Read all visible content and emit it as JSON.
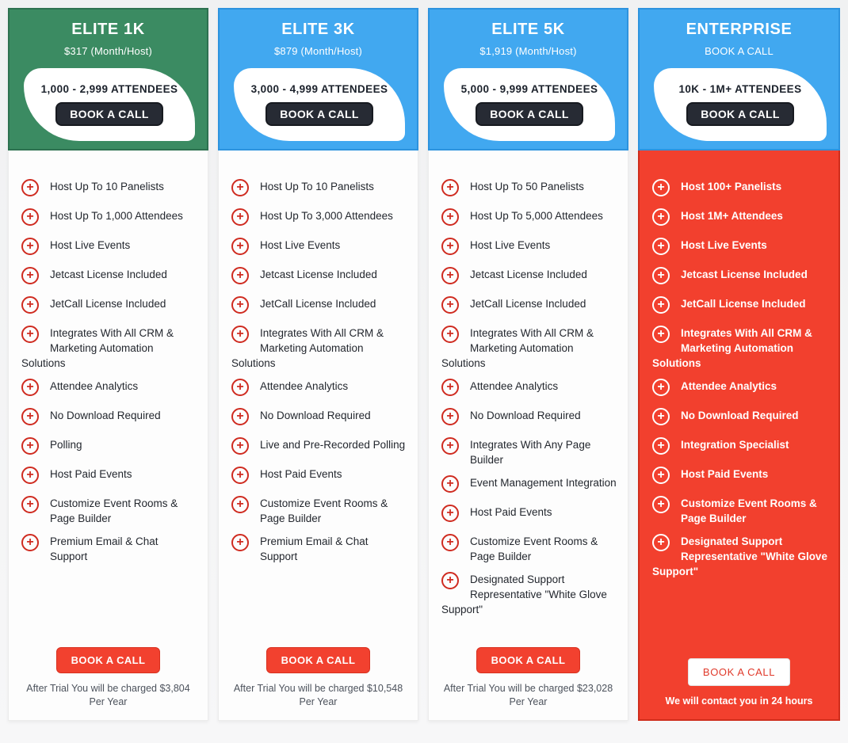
{
  "colors": {
    "green_header": "#3b8b62",
    "blue_header": "#41a8f0",
    "enterprise_red": "#f2402e",
    "icon_red": "#cf2b20",
    "dark_button": "#272b34",
    "red_button": "#f2412f"
  },
  "icons": {
    "plus": "+"
  },
  "plans": [
    {
      "title": "ELITE 1K",
      "subtitle": "$317 (Month/Host)",
      "attendees": "1,000 - 2,999 ATTENDEES",
      "header_cta": "BOOK A CALL",
      "features": [
        "Host Up To 10 Panelists",
        "Host Up To 1,000 Attendees",
        "Host Live Events",
        "Jetcast License Included",
        "JetCall License Included",
        "Integrates With All CRM & Marketing Automation Solutions",
        "Attendee Analytics",
        "No Download Required",
        "Polling",
        "Host Paid Events",
        "Customize Event Rooms & Page Builder",
        "Premium Email & Chat Support"
      ],
      "footer_cta": "BOOK A CALL",
      "footer_note": "After Trial You will be charged $3,804 Per Year"
    },
    {
      "title": "ELITE 3K",
      "subtitle": "$879 (Month/Host)",
      "attendees": "3,000 - 4,999 ATTENDEES",
      "header_cta": "BOOK A CALL",
      "features": [
        "Host Up To 10 Panelists",
        "Host Up To 3,000 Attendees",
        "Host Live Events",
        "Jetcast License Included",
        "JetCall License Included",
        "Integrates With All CRM & Marketing Automation Solutions",
        "Attendee Analytics",
        "No Download Required",
        "Live and Pre-Recorded Polling",
        "Host Paid Events",
        "Customize Event Rooms & Page Builder",
        "Premium Email & Chat Support"
      ],
      "footer_cta": "BOOK A CALL",
      "footer_note": "After Trial You will be charged $10,548 Per Year"
    },
    {
      "title": "ELITE 5K",
      "subtitle": "$1,919 (Month/Host)",
      "attendees": "5,000 - 9,999 ATTENDEES",
      "header_cta": "BOOK A CALL",
      "features": [
        "Host Up To 50 Panelists",
        "Host Up To 5,000 Attendees",
        "Host Live Events",
        "Jetcast License Included",
        "JetCall License Included",
        "Integrates With All CRM & Marketing Automation Solutions",
        "Attendee Analytics",
        "No Download Required",
        "Integrates With Any Page Builder",
        "Event Management Integration",
        "Host Paid Events",
        "Customize Event Rooms & Page Builder",
        "Designated Support Representative \"White Glove Support\""
      ],
      "footer_cta": "BOOK A CALL",
      "footer_note": "After Trial You will be charged $23,028 Per Year"
    },
    {
      "title": "ENTERPRISE",
      "subtitle": "BOOK A CALL",
      "attendees": "10K - 1M+ ATTENDEES",
      "header_cta": "BOOK A CALL",
      "features": [
        "Host 100+ Panelists",
        "Host 1M+ Attendees",
        "Host Live Events",
        "Jetcast License Included",
        "JetCall License Included",
        "Integrates With All CRM & Marketing Automation Solutions",
        "Attendee Analytics",
        "No Download Required",
        "Integration Specialist",
        "Host Paid Events",
        "Customize Event Rooms & Page Builder",
        "Designated Support Representative \"White Glove Support\""
      ],
      "footer_cta": "BOOK A CALL",
      "footer_note": "We will contact you in 24 hours"
    }
  ]
}
